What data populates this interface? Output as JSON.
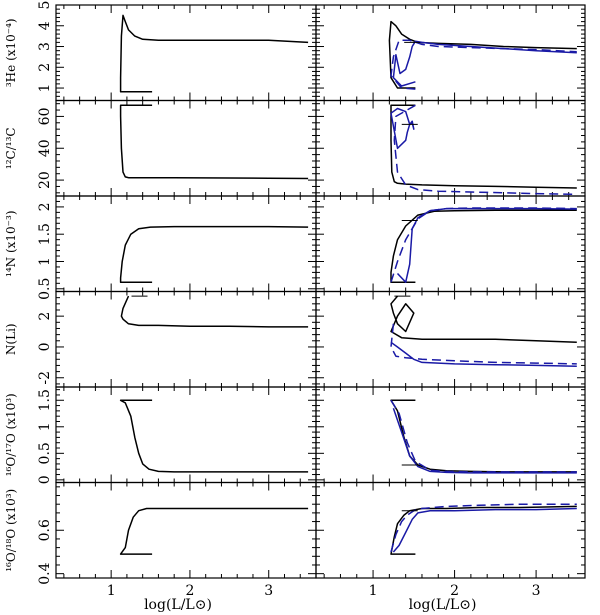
{
  "figure": {
    "xlabel": "log(L/L⊙)",
    "xlim": [
      0.3,
      3.6
    ],
    "xticks": [
      1,
      2,
      3
    ],
    "colors": {
      "black": "#000000",
      "blue": "#1a1aa6"
    }
  },
  "chart_data": [
    {
      "type": "line",
      "ylabel": "³He (x10⁻⁴)",
      "ylim": [
        0.4,
        5.0
      ],
      "yticks": [
        1,
        2,
        3,
        4,
        5
      ],
      "left": {
        "series": [
          {
            "color": "#000000",
            "style": "solid",
            "x": [
              1.52,
              1.12,
              1.12,
              1.13,
              1.15,
              1.18,
              1.22,
              1.3,
              1.4,
              1.6,
              2.0,
              2.5,
              3.0,
              3.5
            ],
            "y": [
              0.82,
              0.82,
              1.5,
              3.5,
              4.5,
              4.2,
              3.8,
              3.5,
              3.35,
              3.3,
              3.3,
              3.3,
              3.3,
              3.2
            ]
          }
        ]
      },
      "right": {
        "series": [
          {
            "color": "#000000",
            "style": "solid",
            "x": [
              1.52,
              1.3,
              1.22,
              1.2,
              1.22,
              1.28,
              1.35,
              1.45,
              1.55,
              1.8,
              2.2,
              2.6,
              3.0,
              3.5
            ],
            "y": [
              1.0,
              1.0,
              1.5,
              3.3,
              4.2,
              4.0,
              3.6,
              3.35,
              3.2,
              3.15,
              3.1,
              3.0,
              2.95,
              2.9
            ]
          },
          {
            "color": "#1a1aa6",
            "style": "solid",
            "x": [
              1.52,
              1.35,
              1.25,
              1.28,
              1.33,
              1.4,
              1.45,
              1.48,
              1.52,
              1.6,
              1.8,
              2.2,
              2.6,
              3.0,
              3.5
            ],
            "y": [
              1.3,
              1.1,
              1.5,
              2.6,
              1.7,
              1.9,
              2.5,
              3.0,
              3.25,
              3.2,
              3.1,
              3.0,
              2.9,
              2.8,
              2.7
            ]
          },
          {
            "color": "#1a1aa6",
            "style": "dashed",
            "x": [
              1.52,
              1.35,
              1.22,
              1.25,
              1.32,
              1.45,
              1.6,
              1.8,
              2.2,
              2.6,
              3.0,
              3.5
            ],
            "y": [
              0.95,
              1.0,
              1.6,
              2.5,
              3.3,
              3.3,
              3.1,
              3.0,
              2.95,
              2.9,
              2.85,
              2.75
            ]
          }
        ],
        "markers": [
          {
            "x": 1.48,
            "y": 3.2
          }
        ]
      }
    },
    {
      "type": "line",
      "ylabel": "¹²C/¹³C",
      "ylim": [
        10,
        70
      ],
      "yticks": [
        20,
        40,
        60
      ],
      "left": {
        "series": [
          {
            "color": "#000000",
            "style": "solid",
            "x": [
              1.52,
              1.12,
              1.12,
              1.13,
              1.15,
              1.18,
              1.22,
              1.4,
              1.8,
              2.5,
              3.0,
              3.5
            ],
            "y": [
              67,
              67,
              60,
              40,
              25,
              22,
              21.5,
              21.5,
              21.5,
              21.3,
              21.2,
              21
            ]
          }
        ]
      },
      "right": {
        "series": [
          {
            "color": "#000000",
            "style": "solid",
            "x": [
              1.52,
              1.22,
              1.22,
              1.23,
              1.26,
              1.3,
              1.4,
              1.6,
              2.0,
              2.5,
              3.0,
              3.5
            ],
            "y": [
              67,
              67,
              45,
              25,
              19,
              18,
              17.5,
              17,
              16.5,
              16,
              15.5,
              15
            ]
          },
          {
            "color": "#1a1aa6",
            "style": "solid",
            "x": [
              1.22,
              1.3,
              1.4,
              1.45,
              1.48,
              1.5,
              1.48,
              1.45,
              1.42,
              1.4,
              1.3,
              1.22
            ],
            "y": [
              62,
              65,
              63,
              55,
              56,
              52,
              57,
              55,
              50,
              45,
              40,
              62
            ]
          },
          {
            "color": "#1a1aa6",
            "style": "dashed",
            "x": [
              1.52,
              1.28,
              1.26,
              1.3,
              1.4,
              1.55,
              1.8,
              2.2,
              2.6,
              3.0,
              3.5
            ],
            "y": [
              67,
              60,
              45,
              25,
              17,
              14,
              13,
              12.5,
              12,
              11.5,
              11
            ]
          }
        ],
        "markers": [
          {
            "x": 1.45,
            "y": 55
          }
        ]
      }
    },
    {
      "type": "line",
      "ylabel": "¹⁴N (x10⁻³)",
      "ylim": [
        0.45,
        2.2
      ],
      "yticks": [
        0.5,
        1.0,
        1.5,
        2.0
      ],
      "left": {
        "series": [
          {
            "color": "#000000",
            "style": "solid",
            "x": [
              1.52,
              1.12,
              1.12,
              1.14,
              1.18,
              1.25,
              1.35,
              1.5,
              1.8,
              2.5,
              3.0,
              3.5
            ],
            "y": [
              0.62,
              0.62,
              0.7,
              1.0,
              1.3,
              1.5,
              1.6,
              1.63,
              1.64,
              1.64,
              1.64,
              1.63
            ]
          }
        ]
      },
      "right": {
        "series": [
          {
            "color": "#000000",
            "style": "solid",
            "x": [
              1.52,
              1.22,
              1.22,
              1.25,
              1.3,
              1.4,
              1.55,
              1.75,
              2.0,
              2.5,
              3.0,
              3.5
            ],
            "y": [
              0.62,
              0.62,
              0.8,
              1.1,
              1.4,
              1.65,
              1.85,
              1.92,
              1.93,
              1.94,
              1.94,
              1.94
            ]
          },
          {
            "color": "#1a1aa6",
            "style": "solid",
            "x": [
              1.3,
              1.4,
              1.45,
              1.48,
              1.55,
              1.7,
              1.9,
              2.2,
              2.6,
              3.0,
              3.5
            ],
            "y": [
              0.78,
              0.62,
              0.95,
              1.6,
              1.8,
              1.93,
              1.97,
              1.97,
              1.97,
              1.97,
              1.96
            ]
          },
          {
            "color": "#1a1aa6",
            "style": "dashed",
            "x": [
              1.22,
              1.3,
              1.4,
              1.55,
              1.7,
              1.9,
              2.2,
              2.6,
              3.0,
              3.5
            ],
            "y": [
              0.62,
              1.0,
              1.4,
              1.78,
              1.93,
              1.97,
              1.98,
              1.98,
              1.98,
              1.97
            ]
          }
        ],
        "markers": [
          {
            "x": 1.45,
            "y": 1.75
          }
        ]
      }
    },
    {
      "type": "line",
      "ylabel": "N(Li)",
      "ylim": [
        -2.6,
        3.6
      ],
      "yticks": [
        -2,
        0,
        2
      ],
      "left": {
        "series": [
          {
            "color": "#000000",
            "style": "solid",
            "x": [
              1.22,
              1.15,
              1.13,
              1.15,
              1.22,
              1.35,
              1.6,
              2.0,
              2.5,
              3.0,
              3.5
            ],
            "y": [
              3.3,
              2.5,
              2.0,
              1.8,
              1.5,
              1.4,
              1.4,
              1.35,
              1.35,
              1.3,
              1.3
            ]
          }
        ],
        "markers": [
          {
            "x": 1.36,
            "y": 3.3
          }
        ]
      },
      "right": {
        "series": [
          {
            "color": "#000000",
            "style": "solid",
            "x": [
              1.3,
              1.22,
              1.25,
              1.3,
              1.4,
              1.5,
              1.4,
              1.3,
              1.22,
              1.35,
              1.6,
              2.0,
              2.5,
              3.0,
              3.5
            ],
            "y": [
              3.3,
              2.8,
              2.2,
              1.5,
              1.0,
              2.2,
              2.8,
              2.0,
              1.0,
              0.6,
              0.5,
              0.5,
              0.5,
              0.4,
              0.3
            ]
          },
          {
            "color": "#1a1aa6",
            "style": "solid",
            "x": [
              1.22,
              1.3,
              1.4,
              1.5,
              1.6,
              2.0,
              2.5,
              3.0,
              3.5
            ],
            "y": [
              0.3,
              0.0,
              -0.4,
              -0.8,
              -1.0,
              -1.1,
              -1.15,
              -1.2,
              -1.25
            ]
          },
          {
            "color": "#1a1aa6",
            "style": "dashed",
            "x": [
              1.25,
              1.22,
              1.28,
              1.4,
              1.6,
              2.0,
              2.5,
              3.0,
              3.5
            ],
            "y": [
              1.5,
              0.0,
              -0.6,
              -0.7,
              -0.8,
              -0.9,
              -1.0,
              -1.05,
              -1.1
            ]
          }
        ],
        "markers": [
          {
            "x": 1.36,
            "y": 3.3
          }
        ]
      }
    },
    {
      "type": "line",
      "ylabel": "¹⁶O/¹⁷O (x10³)",
      "ylim": [
        -0.05,
        1.75
      ],
      "yticks": [
        0.0,
        0.5,
        1.0,
        1.5
      ],
      "left": {
        "series": [
          {
            "color": "#000000",
            "style": "solid",
            "x": [
              1.52,
              1.12,
              1.18,
              1.25,
              1.3,
              1.35,
              1.4,
              1.48,
              1.6,
              1.8,
              2.5,
              3.0,
              3.5
            ],
            "y": [
              1.5,
              1.5,
              1.45,
              1.2,
              0.8,
              0.5,
              0.3,
              0.2,
              0.16,
              0.15,
              0.15,
              0.15,
              0.15
            ]
          }
        ]
      },
      "right": {
        "series": [
          {
            "color": "#000000",
            "style": "solid",
            "x": [
              1.52,
              1.22,
              1.3,
              1.38,
              1.45,
              1.55,
              1.7,
              1.9,
              2.2,
              2.6,
              3.0,
              3.5
            ],
            "y": [
              1.5,
              1.5,
              1.3,
              0.8,
              0.45,
              0.28,
              0.2,
              0.17,
              0.16,
              0.15,
              0.15,
              0.15
            ]
          },
          {
            "color": "#1a1aa6",
            "style": "solid",
            "x": [
              1.25,
              1.35,
              1.45,
              1.55,
              1.7,
              1.9,
              2.2,
              2.6,
              3.0,
              3.5
            ],
            "y": [
              1.35,
              0.9,
              0.45,
              0.25,
              0.16,
              0.14,
              0.13,
              0.13,
              0.13,
              0.13
            ]
          },
          {
            "color": "#1a1aa6",
            "style": "dashed",
            "x": [
              1.22,
              1.32,
              1.42,
              1.52,
              1.7,
              1.9,
              2.2,
              2.6,
              3.0,
              3.5
            ],
            "y": [
              1.5,
              1.25,
              0.7,
              0.35,
              0.18,
              0.16,
              0.15,
              0.15,
              0.15,
              0.15
            ]
          }
        ],
        "markers": [
          {
            "x": 1.45,
            "y": 0.28
          }
        ]
      }
    },
    {
      "type": "line",
      "ylabel": "¹⁶O/¹⁸O (x10³)",
      "ylim": [
        0.38,
        0.82
      ],
      "yticks": [
        0.4,
        0.6
      ],
      "left": {
        "series": [
          {
            "color": "#000000",
            "style": "solid",
            "x": [
              1.52,
              1.12,
              1.18,
              1.22,
              1.28,
              1.35,
              1.45,
              1.6,
              2.0,
              2.5,
              3.0,
              3.5
            ],
            "y": [
              0.49,
              0.49,
              0.52,
              0.6,
              0.66,
              0.69,
              0.7,
              0.7,
              0.7,
              0.7,
              0.7,
              0.7
            ]
          }
        ]
      },
      "right": {
        "series": [
          {
            "color": "#000000",
            "style": "solid",
            "x": [
              1.52,
              1.22,
              1.26,
              1.3,
              1.38,
              1.45,
              1.6,
              1.9,
              2.3,
              2.8,
              3.5
            ],
            "y": [
              0.49,
              0.49,
              0.57,
              0.63,
              0.67,
              0.69,
              0.7,
              0.7,
              0.705,
              0.705,
              0.71
            ]
          },
          {
            "color": "#1a1aa6",
            "style": "solid",
            "x": [
              1.25,
              1.32,
              1.4,
              1.48,
              1.55,
              1.7,
              2.0,
              2.5,
              3.0,
              3.5
            ],
            "y": [
              0.5,
              0.53,
              0.59,
              0.65,
              0.68,
              0.69,
              0.69,
              0.695,
              0.695,
              0.7
            ]
          },
          {
            "color": "#1a1aa6",
            "style": "dashed",
            "x": [
              1.22,
              1.28,
              1.35,
              1.42,
              1.5,
              1.6,
              1.9,
              2.3,
              2.8,
              3.5
            ],
            "y": [
              0.5,
              0.58,
              0.64,
              0.67,
              0.69,
              0.7,
              0.71,
              0.715,
              0.72,
              0.72
            ]
          }
        ],
        "markers": [
          {
            "x": 1.45,
            "y": 0.69
          }
        ]
      }
    }
  ]
}
